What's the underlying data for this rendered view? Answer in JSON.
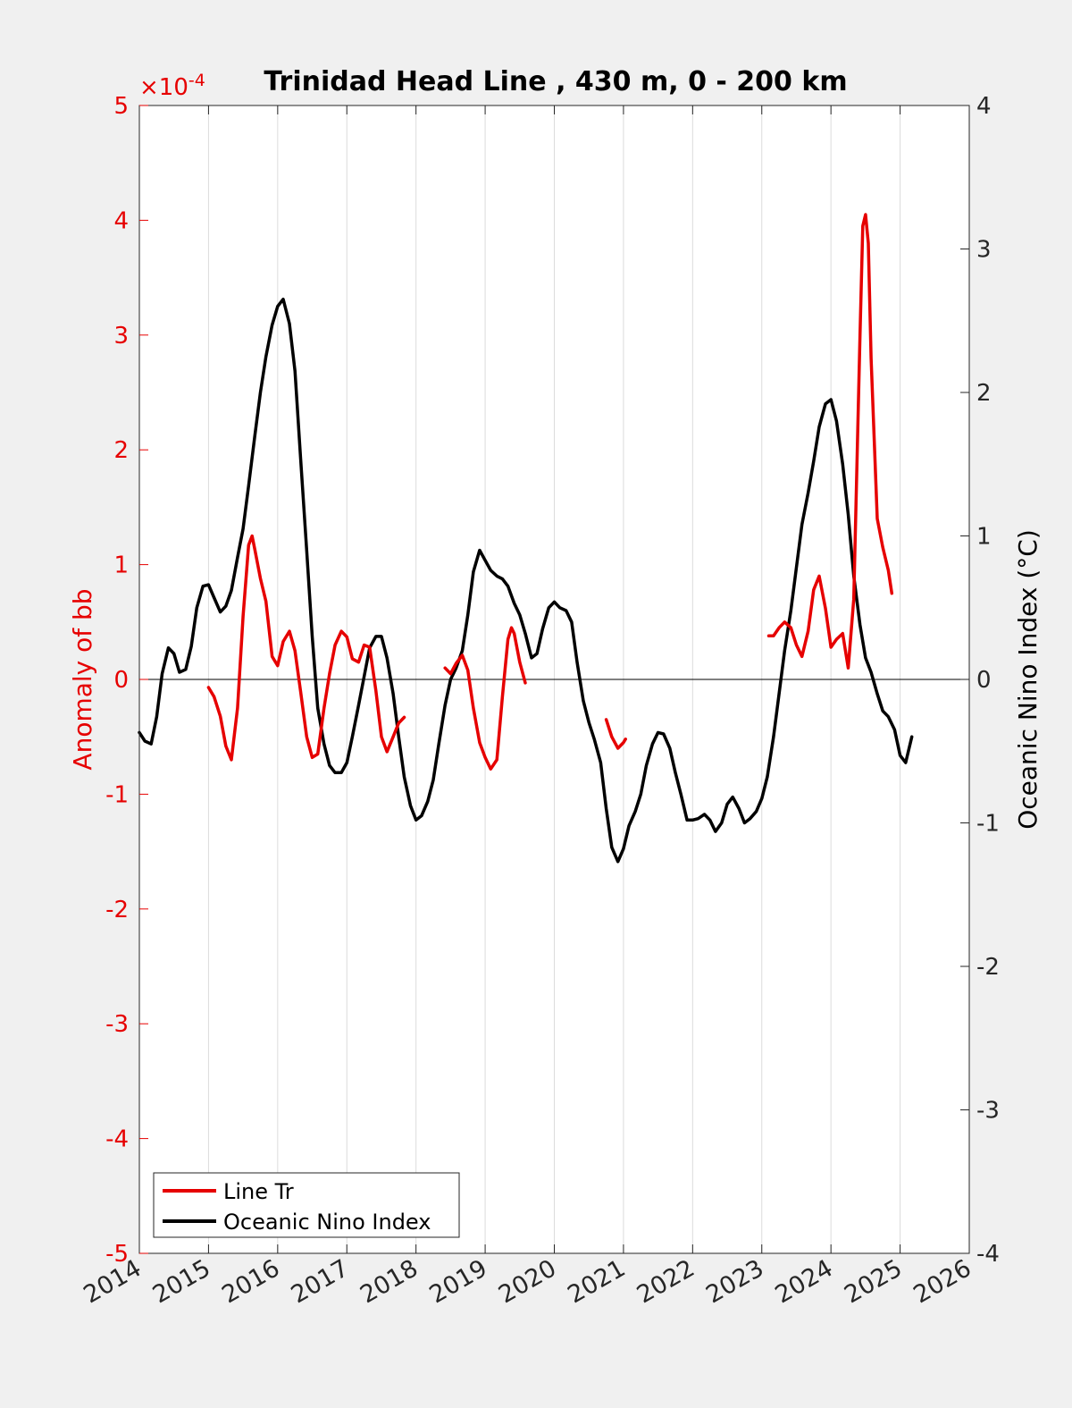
{
  "chart_data": {
    "type": "line",
    "title": "Trinidad Head Line , 430 m, 0 - 200 km",
    "xlabel": "",
    "ylabel_left": "Anomaly of bb",
    "ylabel_right": "Oceanic Nino Index (°C)",
    "y_left_exponent": "×10",
    "y_left_exponent_power": "-4",
    "xlim": [
      2014,
      2026
    ],
    "ylim_left": [
      -5,
      5
    ],
    "ylim_right": [
      -4,
      4
    ],
    "x_ticks": [
      "2014",
      "2015",
      "2016",
      "2017",
      "2018",
      "2019",
      "2020",
      "2021",
      "2022",
      "2023",
      "2024",
      "2025",
      "2026"
    ],
    "y_left_ticks": [
      "-5",
      "-4",
      "-3",
      "-2",
      "-1",
      "0",
      "1",
      "2",
      "3",
      "4",
      "5"
    ],
    "y_right_ticks": [
      "-4",
      "-3",
      "-2",
      "-1",
      "0",
      "1",
      "2",
      "3",
      "4"
    ],
    "grid": "vertical",
    "legend_position": "bottom-left",
    "colors": {
      "line_tr": "#e60000",
      "oni": "#000000",
      "axis_left": "#e60000",
      "axis_right": "#000000"
    },
    "series": [
      {
        "name": "Line Tr",
        "axis": "left",
        "segments": [
          [
            [
              2015.0,
              -0.07
            ],
            [
              2015.08,
              -0.15
            ],
            [
              2015.17,
              -0.32
            ],
            [
              2015.25,
              -0.58
            ],
            [
              2015.33,
              -0.7
            ],
            [
              2015.42,
              -0.25
            ],
            [
              2015.5,
              0.55
            ],
            [
              2015.58,
              1.17
            ],
            [
              2015.63,
              1.25
            ],
            [
              2015.67,
              1.13
            ],
            [
              2015.75,
              0.88
            ],
            [
              2015.83,
              0.68
            ],
            [
              2015.92,
              0.2
            ],
            [
              2016.0,
              0.12
            ],
            [
              2016.08,
              0.33
            ],
            [
              2016.17,
              0.42
            ],
            [
              2016.25,
              0.25
            ],
            [
              2016.33,
              -0.1
            ],
            [
              2016.42,
              -0.5
            ],
            [
              2016.5,
              -0.68
            ],
            [
              2016.58,
              -0.65
            ],
            [
              2016.67,
              -0.25
            ],
            [
              2016.75,
              0.05
            ],
            [
              2016.83,
              0.3
            ],
            [
              2016.92,
              0.42
            ],
            [
              2017.0,
              0.37
            ],
            [
              2017.08,
              0.18
            ],
            [
              2017.17,
              0.15
            ],
            [
              2017.25,
              0.3
            ],
            [
              2017.33,
              0.28
            ],
            [
              2017.42,
              -0.1
            ],
            [
              2017.5,
              -0.5
            ],
            [
              2017.58,
              -0.63
            ],
            [
              2017.67,
              -0.5
            ],
            [
              2017.75,
              -0.38
            ],
            [
              2017.83,
              -0.33
            ]
          ],
          [
            [
              2018.42,
              0.1
            ],
            [
              2018.5,
              0.05
            ],
            [
              2018.58,
              0.14
            ],
            [
              2018.67,
              0.21
            ],
            [
              2018.75,
              0.08
            ],
            [
              2018.83,
              -0.25
            ],
            [
              2018.92,
              -0.55
            ],
            [
              2019.0,
              -0.68
            ],
            [
              2019.08,
              -0.78
            ],
            [
              2019.17,
              -0.7
            ],
            [
              2019.25,
              -0.15
            ],
            [
              2019.33,
              0.35
            ],
            [
              2019.38,
              0.45
            ],
            [
              2019.42,
              0.4
            ],
            [
              2019.5,
              0.15
            ],
            [
              2019.58,
              -0.03
            ]
          ],
          [
            [
              2020.75,
              -0.35
            ],
            [
              2020.83,
              -0.5
            ],
            [
              2020.92,
              -0.6
            ],
            [
              2021.0,
              -0.55
            ],
            [
              2021.03,
              -0.52
            ]
          ],
          [
            [
              2023.1,
              0.38
            ],
            [
              2023.17,
              0.38
            ],
            [
              2023.25,
              0.45
            ],
            [
              2023.33,
              0.5
            ],
            [
              2023.42,
              0.45
            ],
            [
              2023.5,
              0.3
            ],
            [
              2023.58,
              0.2
            ],
            [
              2023.67,
              0.42
            ],
            [
              2023.75,
              0.78
            ],
            [
              2023.83,
              0.9
            ],
            [
              2023.92,
              0.62
            ],
            [
              2024.0,
              0.28
            ],
            [
              2024.08,
              0.35
            ],
            [
              2024.17,
              0.4
            ],
            [
              2024.25,
              0.1
            ],
            [
              2024.33,
              0.7
            ],
            [
              2024.42,
              3.0
            ],
            [
              2024.46,
              3.95
            ],
            [
              2024.5,
              4.05
            ],
            [
              2024.54,
              3.8
            ],
            [
              2024.58,
              2.8
            ],
            [
              2024.67,
              1.4
            ],
            [
              2024.75,
              1.15
            ],
            [
              2024.83,
              0.95
            ],
            [
              2024.88,
              0.75
            ]
          ]
        ]
      },
      {
        "name": "Oceanic Nino Index",
        "axis": "right",
        "points": [
          [
            2014.0,
            -0.37
          ],
          [
            2014.08,
            -0.43
          ],
          [
            2014.17,
            -0.45
          ],
          [
            2014.25,
            -0.26
          ],
          [
            2014.33,
            0.04
          ],
          [
            2014.42,
            0.22
          ],
          [
            2014.5,
            0.18
          ],
          [
            2014.58,
            0.05
          ],
          [
            2014.67,
            0.07
          ],
          [
            2014.75,
            0.23
          ],
          [
            2014.83,
            0.5
          ],
          [
            2014.92,
            0.65
          ],
          [
            2015.0,
            0.66
          ],
          [
            2015.08,
            0.57
          ],
          [
            2015.17,
            0.47
          ],
          [
            2015.25,
            0.51
          ],
          [
            2015.33,
            0.62
          ],
          [
            2015.42,
            0.85
          ],
          [
            2015.5,
            1.05
          ],
          [
            2015.58,
            1.35
          ],
          [
            2015.67,
            1.7
          ],
          [
            2015.75,
            2.0
          ],
          [
            2015.83,
            2.25
          ],
          [
            2015.92,
            2.47
          ],
          [
            2016.0,
            2.6
          ],
          [
            2016.08,
            2.65
          ],
          [
            2016.17,
            2.48
          ],
          [
            2016.25,
            2.15
          ],
          [
            2016.33,
            1.55
          ],
          [
            2016.42,
            0.9
          ],
          [
            2016.5,
            0.3
          ],
          [
            2016.58,
            -0.2
          ],
          [
            2016.67,
            -0.45
          ],
          [
            2016.75,
            -0.6
          ],
          [
            2016.83,
            -0.65
          ],
          [
            2016.92,
            -0.65
          ],
          [
            2017.0,
            -0.58
          ],
          [
            2017.08,
            -0.4
          ],
          [
            2017.17,
            -0.18
          ],
          [
            2017.25,
            0.02
          ],
          [
            2017.33,
            0.22
          ],
          [
            2017.42,
            0.3
          ],
          [
            2017.5,
            0.3
          ],
          [
            2017.58,
            0.15
          ],
          [
            2017.67,
            -0.1
          ],
          [
            2017.75,
            -0.4
          ],
          [
            2017.83,
            -0.68
          ],
          [
            2017.92,
            -0.88
          ],
          [
            2018.0,
            -0.98
          ],
          [
            2018.08,
            -0.95
          ],
          [
            2018.17,
            -0.85
          ],
          [
            2018.25,
            -0.7
          ],
          [
            2018.33,
            -0.45
          ],
          [
            2018.42,
            -0.18
          ],
          [
            2018.5,
            0.0
          ],
          [
            2018.58,
            0.08
          ],
          [
            2018.67,
            0.2
          ],
          [
            2018.75,
            0.45
          ],
          [
            2018.83,
            0.75
          ],
          [
            2018.92,
            0.9
          ],
          [
            2019.0,
            0.83
          ],
          [
            2019.08,
            0.76
          ],
          [
            2019.17,
            0.72
          ],
          [
            2019.25,
            0.7
          ],
          [
            2019.33,
            0.65
          ],
          [
            2019.42,
            0.53
          ],
          [
            2019.5,
            0.45
          ],
          [
            2019.58,
            0.32
          ],
          [
            2019.67,
            0.15
          ],
          [
            2019.75,
            0.18
          ],
          [
            2019.83,
            0.35
          ],
          [
            2019.92,
            0.5
          ],
          [
            2020.0,
            0.54
          ],
          [
            2020.08,
            0.5
          ],
          [
            2020.17,
            0.48
          ],
          [
            2020.25,
            0.4
          ],
          [
            2020.33,
            0.12
          ],
          [
            2020.42,
            -0.15
          ],
          [
            2020.5,
            -0.3
          ],
          [
            2020.58,
            -0.42
          ],
          [
            2020.67,
            -0.58
          ],
          [
            2020.75,
            -0.9
          ],
          [
            2020.83,
            -1.17
          ],
          [
            2020.92,
            -1.27
          ],
          [
            2021.0,
            -1.18
          ],
          [
            2021.08,
            -1.02
          ],
          [
            2021.17,
            -0.92
          ],
          [
            2021.25,
            -0.8
          ],
          [
            2021.33,
            -0.6
          ],
          [
            2021.42,
            -0.45
          ],
          [
            2021.5,
            -0.37
          ],
          [
            2021.58,
            -0.38
          ],
          [
            2021.67,
            -0.48
          ],
          [
            2021.75,
            -0.65
          ],
          [
            2021.83,
            -0.8
          ],
          [
            2021.92,
            -0.98
          ],
          [
            2022.0,
            -0.98
          ],
          [
            2022.08,
            -0.97
          ],
          [
            2022.17,
            -0.94
          ],
          [
            2022.25,
            -0.98
          ],
          [
            2022.33,
            -1.06
          ],
          [
            2022.42,
            -1.0
          ],
          [
            2022.5,
            -0.87
          ],
          [
            2022.58,
            -0.82
          ],
          [
            2022.67,
            -0.9
          ],
          [
            2022.75,
            -1.0
          ],
          [
            2022.83,
            -0.97
          ],
          [
            2022.92,
            -0.92
          ],
          [
            2023.0,
            -0.83
          ],
          [
            2023.08,
            -0.68
          ],
          [
            2023.17,
            -0.4
          ],
          [
            2023.25,
            -0.1
          ],
          [
            2023.33,
            0.2
          ],
          [
            2023.42,
            0.48
          ],
          [
            2023.5,
            0.78
          ],
          [
            2023.58,
            1.08
          ],
          [
            2023.67,
            1.3
          ],
          [
            2023.75,
            1.52
          ],
          [
            2023.83,
            1.76
          ],
          [
            2023.92,
            1.92
          ],
          [
            2024.0,
            1.95
          ],
          [
            2024.08,
            1.8
          ],
          [
            2024.17,
            1.5
          ],
          [
            2024.25,
            1.15
          ],
          [
            2024.33,
            0.72
          ],
          [
            2024.42,
            0.38
          ],
          [
            2024.5,
            0.15
          ],
          [
            2024.58,
            0.05
          ],
          [
            2024.67,
            -0.1
          ],
          [
            2024.75,
            -0.22
          ],
          [
            2024.83,
            -0.26
          ],
          [
            2024.92,
            -0.35
          ],
          [
            2025.0,
            -0.53
          ],
          [
            2025.08,
            -0.58
          ],
          [
            2025.17,
            -0.4
          ]
        ]
      }
    ]
  }
}
